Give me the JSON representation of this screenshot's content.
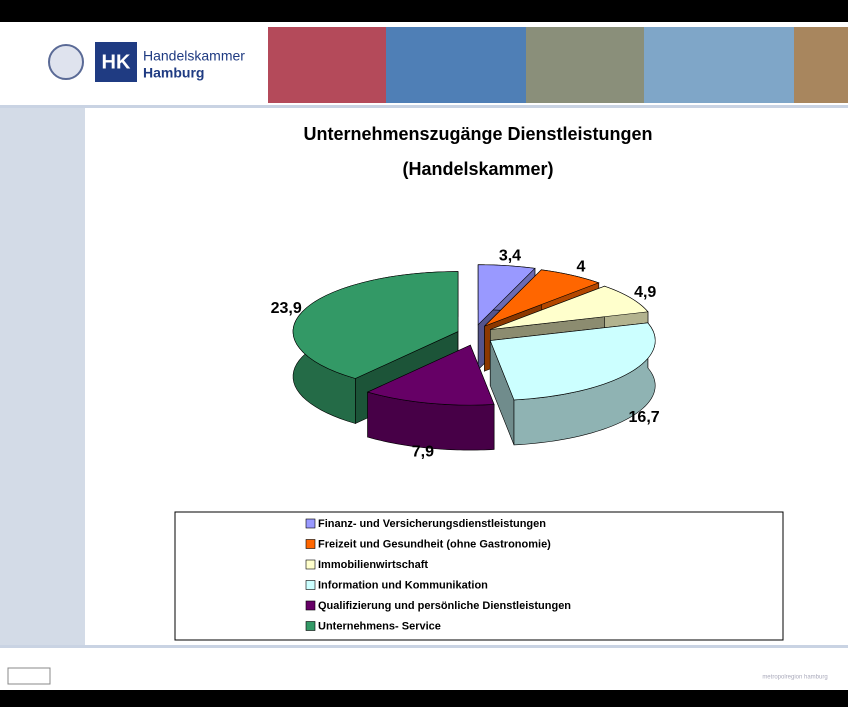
{
  "header": {
    "logo_abbr": "HK",
    "logo_line1": "Handelskammer",
    "logo_line2": "Hamburg"
  },
  "footer_logo": "metropolregion hamburg",
  "chart_data": {
    "type": "pie3d",
    "title": "Unternehmenszugänge Dienstleistungen",
    "subtitle": "(Handelskammer)",
    "categories": [
      "Finanz- und Versicherungsdienstleistungen",
      "Freizeit und Gesundheit (ohne Gastronomie)",
      "Immobilienwirtschaft",
      "Information und Kommunikation",
      "Qualifizierung und persönliche Dienstleistungen",
      "Unternehmens- Service"
    ],
    "values": [
      3.4,
      4,
      4.9,
      16.7,
      7.9,
      23.9
    ],
    "value_labels": [
      "3,4",
      "4",
      "4,9",
      "16,7",
      "7,9",
      "23,9"
    ],
    "colors": [
      "#9999ff",
      "#ff6600",
      "#ffffcc",
      "#ccffff",
      "#660066",
      "#339966"
    ],
    "legend": "bottom"
  }
}
